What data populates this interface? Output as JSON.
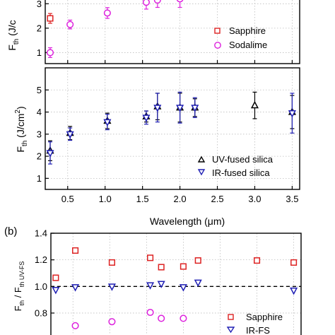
{
  "chart_data": [
    {
      "panel": "a-top",
      "type": "scatter",
      "ylabel_main": "F",
      "ylabel_sub": "th",
      "ylabel_rest": " (J/c",
      "xlim": [
        0.2,
        3.6
      ],
      "ylim": [
        0.55,
        3.5
      ],
      "yticks": [
        1,
        2,
        3
      ],
      "ytick_labels": [
        "1",
        "2",
        "3"
      ],
      "grid": true,
      "legend_position": "right",
      "series": [
        {
          "name": "Sapphire",
          "color": "#dd2222",
          "marker": "square",
          "x": [
            0.266
          ],
          "y": [
            2.4
          ],
          "err": [
            0.2
          ]
        },
        {
          "name": "Sodalime",
          "color": "#dd22dd",
          "marker": "circle",
          "x": [
            0.266,
            0.532,
            1.03,
            1.55,
            1.7,
            2.0
          ],
          "y": [
            1.0,
            2.15,
            2.62,
            3.06,
            3.15,
            3.2
          ],
          "err": [
            0.2,
            0.18,
            0.22,
            0.28,
            0.3,
            0.35
          ]
        }
      ]
    },
    {
      "panel": "a-bottom",
      "type": "scatter",
      "ylabel_main": "F",
      "ylabel_sub": "th",
      "ylabel_rest": " (J/cm",
      "ylabel_sup": "2",
      "ylabel_end": ")",
      "xlabel": "Wavelength (μm)",
      "xlim": [
        0.2,
        3.6
      ],
      "ylim": [
        0.5,
        6
      ],
      "xticks": [
        0.5,
        1.0,
        1.5,
        2.0,
        2.5,
        3.0,
        3.5
      ],
      "xtick_labels": [
        "0.5",
        "1.0",
        "1.5",
        "2.0",
        "2.5",
        "3.0",
        "3.5"
      ],
      "yticks": [
        1,
        2,
        3,
        4,
        5
      ],
      "ytick_labels": [
        "1",
        "2",
        "3",
        "4",
        "5"
      ],
      "grid": true,
      "legend_position": "bottom-right",
      "series": [
        {
          "name": "UV-fused silica",
          "color": "#000000",
          "marker": "triangle-up",
          "x": [
            0.266,
            0.532,
            1.03,
            1.55,
            1.7,
            2.0,
            2.2,
            3.0,
            3.5
          ],
          "y": [
            2.25,
            3.05,
            3.6,
            3.8,
            4.25,
            4.2,
            4.2,
            4.3,
            4.0
          ],
          "err": [
            0.45,
            0.3,
            0.35,
            0.25,
            0.6,
            0.65,
            0.4,
            0.6,
            0.75
          ]
        },
        {
          "name": "IR-fused silica",
          "color": "#1f1fb4",
          "marker": "triangle-down",
          "x": [
            0.266,
            0.532,
            1.03,
            1.55,
            1.7,
            2.0,
            2.2,
            3.5
          ],
          "y": [
            2.15,
            3.0,
            3.55,
            3.75,
            4.2,
            4.2,
            4.2,
            3.95
          ],
          "err": [
            0.5,
            0.28,
            0.35,
            0.3,
            0.65,
            0.7,
            0.45,
            0.9
          ]
        }
      ]
    },
    {
      "panel": "b",
      "type": "scatter",
      "panel_label": "(b)",
      "ylabel_main": "F",
      "ylabel_sub": "th",
      "ylabel_mid": " / F",
      "ylabel_sub2": "th UV-FS",
      "xlim": [
        0.2,
        3.6
      ],
      "ylim": [
        0.55,
        1.4
      ],
      "yticks": [
        0.6,
        0.8,
        1.0,
        1.2,
        1.4
      ],
      "ytick_labels": [
        "0.6",
        "0.8",
        "1.0",
        "1.2",
        "1.4"
      ],
      "grid": true,
      "reference_line": 1.0,
      "legend_position": "bottom-right",
      "series": [
        {
          "name": "Sapphire",
          "color": "#dd2222",
          "marker": "square",
          "x": [
            0.266,
            0.532,
            1.03,
            1.55,
            1.7,
            2.0,
            2.2,
            3.0,
            3.5
          ],
          "y": [
            1.065,
            1.27,
            1.18,
            1.215,
            1.145,
            1.15,
            1.195,
            1.195,
            1.18
          ]
        },
        {
          "name": "Sodalime",
          "color": "#dd22dd",
          "marker": "circle",
          "x": [
            0.532,
            1.03,
            1.55,
            1.7,
            2.0
          ],
          "y": [
            0.705,
            0.735,
            0.805,
            0.76,
            0.76
          ]
        },
        {
          "name": "IR-FS",
          "color": "#1f1fb4",
          "marker": "triangle-down",
          "x": [
            0.266,
            0.532,
            1.03,
            1.55,
            1.7,
            2.0,
            2.2,
            3.5
          ],
          "y": [
            0.975,
            0.995,
            1.0,
            1.01,
            1.02,
            0.995,
            1.03,
            0.97
          ]
        }
      ]
    }
  ]
}
